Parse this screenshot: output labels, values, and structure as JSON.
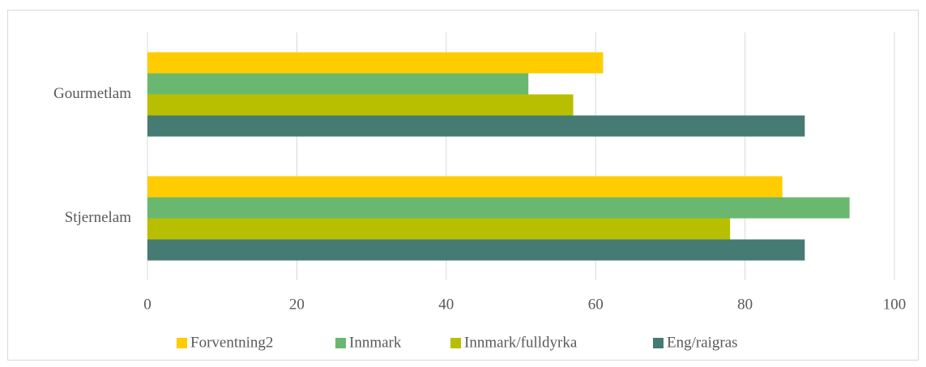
{
  "chart_data": {
    "type": "bar",
    "orientation": "horizontal",
    "categories": [
      "Gourmetlam",
      "Stjernelam"
    ],
    "series": [
      {
        "name": "Forventning2",
        "color": "#ffcc00",
        "values": [
          61,
          85
        ]
      },
      {
        "name": "Innmark",
        "color": "#6ab86f",
        "values": [
          51,
          94
        ]
      },
      {
        "name": "Innmark/fulldyrka",
        "color": "#b8bf00",
        "values": [
          57,
          78
        ]
      },
      {
        "name": "Eng/raigras",
        "color": "#457b72",
        "values": [
          88,
          88
        ]
      }
    ],
    "xlim": [
      0,
      100
    ],
    "xticks": [
      0,
      20,
      40,
      60,
      80,
      100
    ],
    "grid": true,
    "legend": "bottom"
  }
}
